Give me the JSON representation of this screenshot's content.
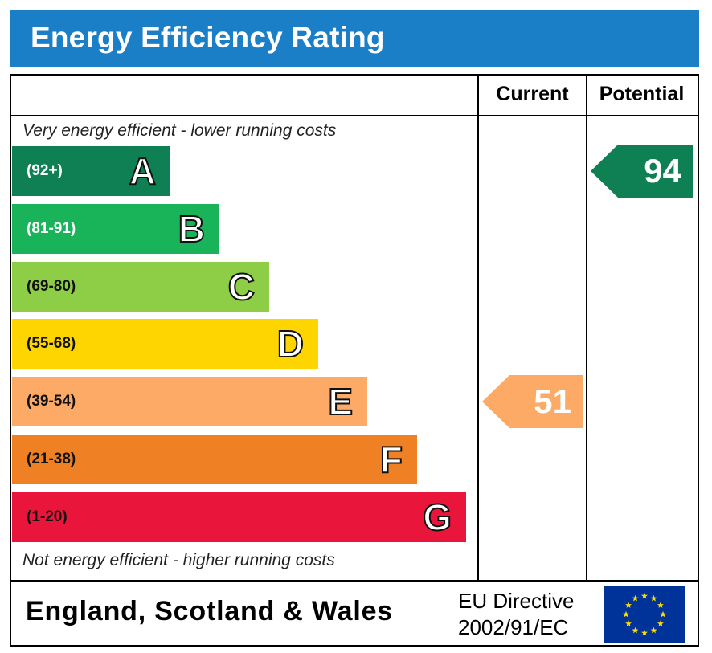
{
  "title": "Energy Efficiency Rating",
  "columns": {
    "current": "Current",
    "potential": "Potential"
  },
  "notes": {
    "top": "Very energy efficient - lower running costs",
    "bottom": "Not energy efficient - higher running costs"
  },
  "chart_data": {
    "type": "bar",
    "title": "Energy Efficiency Rating",
    "categories": [
      "A",
      "B",
      "C",
      "D",
      "E",
      "F",
      "G"
    ],
    "bands": [
      {
        "letter": "A",
        "range": "(92+)",
        "min": 92,
        "max": 100,
        "color": "#0f8053",
        "range_color": "#ffffff"
      },
      {
        "letter": "B",
        "range": "(81-91)",
        "min": 81,
        "max": 91,
        "color": "#19b459",
        "range_color": "#ffffff"
      },
      {
        "letter": "C",
        "range": "(69-80)",
        "min": 69,
        "max": 80,
        "color": "#8dce46",
        "range_color": "#111111"
      },
      {
        "letter": "D",
        "range": "(55-68)",
        "min": 55,
        "max": 68,
        "color": "#ffd500",
        "range_color": "#111111"
      },
      {
        "letter": "E",
        "range": "(39-54)",
        "min": 39,
        "max": 54,
        "color": "#fcaa65",
        "range_color": "#111111"
      },
      {
        "letter": "F",
        "range": "(21-38)",
        "min": 21,
        "max": 38,
        "color": "#ef8023",
        "range_color": "#111111"
      },
      {
        "letter": "G",
        "range": "(1-20)",
        "min": 1,
        "max": 20,
        "color": "#e9153b",
        "range_color": "#111111"
      }
    ],
    "current": {
      "value": 51,
      "band": "E",
      "color": "#fcaa65"
    },
    "potential": {
      "value": 94,
      "band": "A",
      "color": "#0f8053"
    }
  },
  "footer": {
    "region": "England, Scotland & Wales",
    "directive_line1": "EU Directive",
    "directive_line2": "2002/91/EC",
    "flag_icon": "eu-flag-icon",
    "flag_color": "#003399",
    "star_color": "#ffdd00"
  }
}
